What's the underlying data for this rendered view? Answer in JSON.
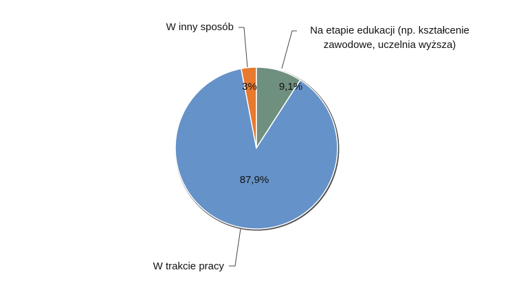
{
  "chart_data": {
    "type": "pie",
    "categories": [
      "Na etapie edukacji (np. kształcenie zawodowe, uczelnia wyższa)",
      "W trakcie pracy",
      "W inny sposób"
    ],
    "values": [
      9.1,
      87.9,
      3
    ],
    "value_labels": [
      "9,1%",
      "87,9%",
      "3%"
    ],
    "colors": [
      "#6f8f7f",
      "#6592c8",
      "#e8792e"
    ]
  }
}
